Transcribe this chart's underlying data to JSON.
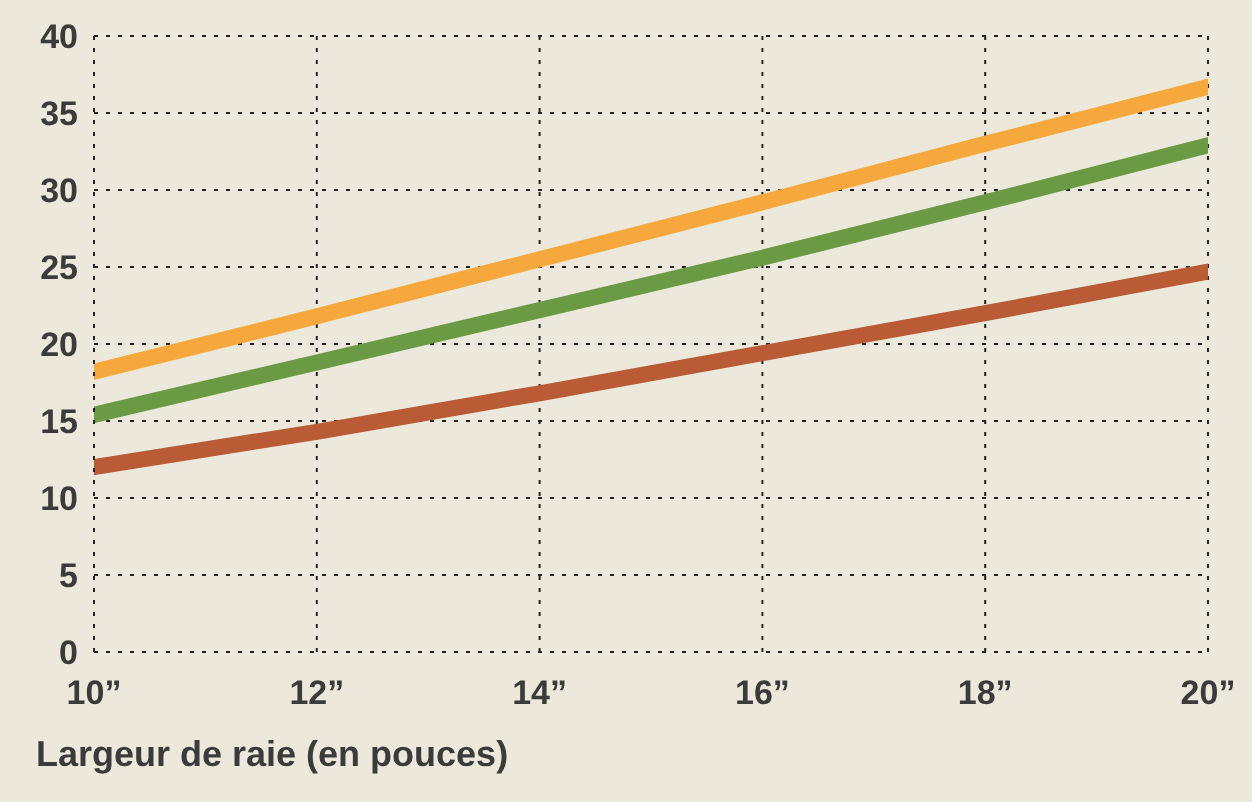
{
  "chart_data": {
    "type": "line",
    "xlabel": "Largeur de raie (en pouces)",
    "x": [
      10,
      12,
      14,
      16,
      18,
      20
    ],
    "series": [
      {
        "color": "#f6a83c",
        "values": [
          18.2,
          21.8,
          25.5,
          29.2,
          33.0,
          36.7
        ]
      },
      {
        "color": "#6a9a43",
        "values": [
          15.4,
          18.8,
          22.2,
          25.6,
          29.2,
          32.9
        ]
      },
      {
        "color": "#b95b34",
        "values": [
          12.0,
          14.3,
          16.8,
          19.4,
          22.0,
          24.7
        ]
      }
    ],
    "xlim": [
      10,
      20
    ],
    "xticks": [
      {
        "value": 10,
        "label": "10”"
      },
      {
        "value": 12,
        "label": "12”"
      },
      {
        "value": 14,
        "label": "14”"
      },
      {
        "value": 16,
        "label": "16”"
      },
      {
        "value": 18,
        "label": "18”"
      },
      {
        "value": 20,
        "label": "20”"
      }
    ],
    "ylim": [
      0,
      40
    ],
    "yticks": [
      0,
      5,
      10,
      15,
      20,
      25,
      30,
      35,
      40
    ],
    "grid": true,
    "legend": false
  }
}
